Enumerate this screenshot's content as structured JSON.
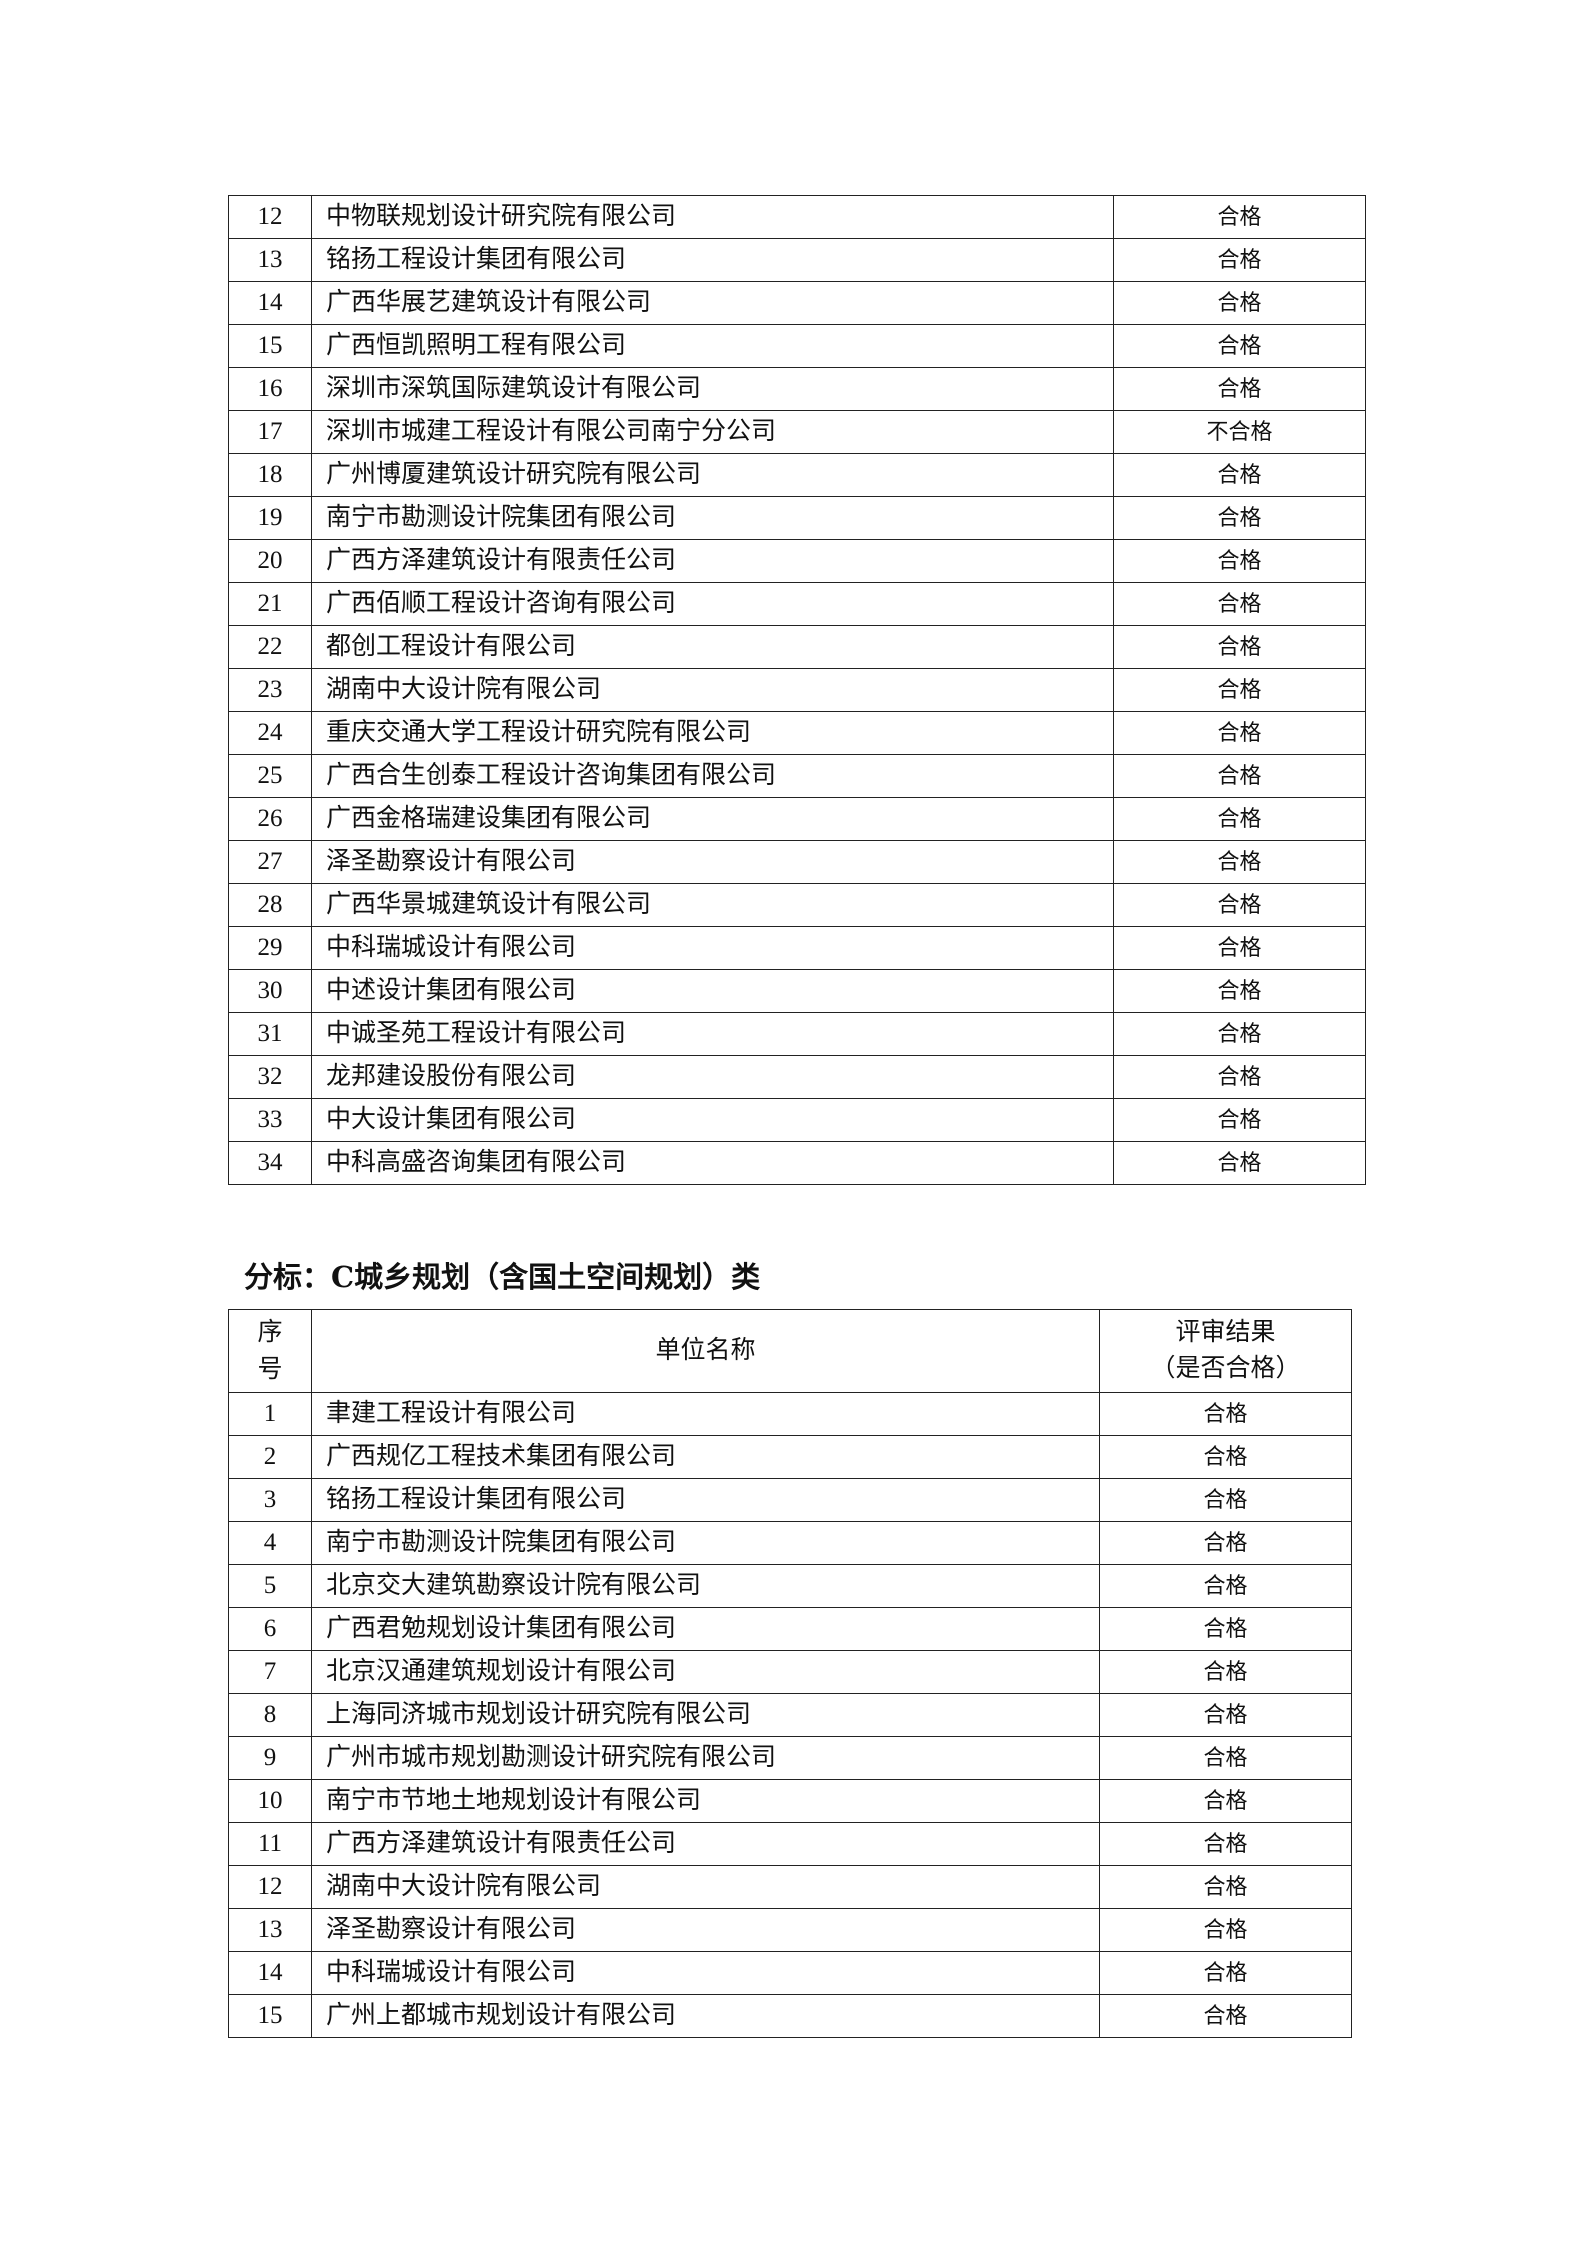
{
  "table1": {
    "rows": [
      [
        "12",
        "中物联规划设计研究院有限公司",
        "合格"
      ],
      [
        "13",
        "铭扬工程设计集团有限公司",
        "合格"
      ],
      [
        "14",
        "广西华展艺建筑设计有限公司",
        "合格"
      ],
      [
        "15",
        "广西恒凯照明工程有限公司",
        "合格"
      ],
      [
        "16",
        "深圳市深筑国际建筑设计有限公司",
        "合格"
      ],
      [
        "17",
        "深圳市城建工程设计有限公司南宁分公司",
        "不合格"
      ],
      [
        "18",
        "广州博厦建筑设计研究院有限公司",
        "合格"
      ],
      [
        "19",
        "南宁市勘测设计院集团有限公司",
        "合格"
      ],
      [
        "20",
        "广西方泽建筑设计有限责任公司",
        "合格"
      ],
      [
        "21",
        "广西佰顺工程设计咨询有限公司",
        "合格"
      ],
      [
        "22",
        "都创工程设计有限公司",
        "合格"
      ],
      [
        "23",
        "湖南中大设计院有限公司",
        "合格"
      ],
      [
        "24",
        "重庆交通大学工程设计研究院有限公司",
        "合格"
      ],
      [
        "25",
        "广西合生创泰工程设计咨询集团有限公司",
        "合格"
      ],
      [
        "26",
        "广西金格瑞建设集团有限公司",
        "合格"
      ],
      [
        "27",
        "泽圣勘察设计有限公司",
        "合格"
      ],
      [
        "28",
        "广西华景城建筑设计有限公司",
        "合格"
      ],
      [
        "29",
        "中科瑞城设计有限公司",
        "合格"
      ],
      [
        "30",
        "中述设计集团有限公司",
        "合格"
      ],
      [
        "31",
        "中诚圣苑工程设计有限公司",
        "合格"
      ],
      [
        "32",
        "龙邦建设股份有限公司",
        "合格"
      ],
      [
        "33",
        "中大设计集团有限公司",
        "合格"
      ],
      [
        "34",
        "中科高盛咨询集团有限公司",
        "合格"
      ]
    ]
  },
  "section_c": {
    "title": "分标：C城乡规划（含国土空间规划）类",
    "headers": {
      "no_line1": "序",
      "no_line2": "号",
      "name": "单位名称",
      "result_line1": "评审结果",
      "result_line2": "（是否合格）"
    },
    "rows": [
      [
        "1",
        "聿建工程设计有限公司",
        "合格"
      ],
      [
        "2",
        "广西规亿工程技术集团有限公司",
        "合格"
      ],
      [
        "3",
        "铭扬工程设计集团有限公司",
        "合格"
      ],
      [
        "4",
        "南宁市勘测设计院集团有限公司",
        "合格"
      ],
      [
        "5",
        "北京交大建筑勘察设计院有限公司",
        "合格"
      ],
      [
        "6",
        "广西君勉规划设计集团有限公司",
        "合格"
      ],
      [
        "7",
        "北京汉通建筑规划设计有限公司",
        "合格"
      ],
      [
        "8",
        "上海同济城市规划设计研究院有限公司",
        "合格"
      ],
      [
        "9",
        "广州市城市规划勘测设计研究院有限公司",
        "合格"
      ],
      [
        "10",
        "南宁市节地土地规划设计有限公司",
        "合格"
      ],
      [
        "11",
        "广西方泽建筑设计有限责任公司",
        "合格"
      ],
      [
        "12",
        "湖南中大设计院有限公司",
        "合格"
      ],
      [
        "13",
        "泽圣勘察设计有限公司",
        "合格"
      ],
      [
        "14",
        "中科瑞城设计有限公司",
        "合格"
      ],
      [
        "15",
        "广州上都城市规划设计有限公司",
        "合格"
      ]
    ]
  }
}
